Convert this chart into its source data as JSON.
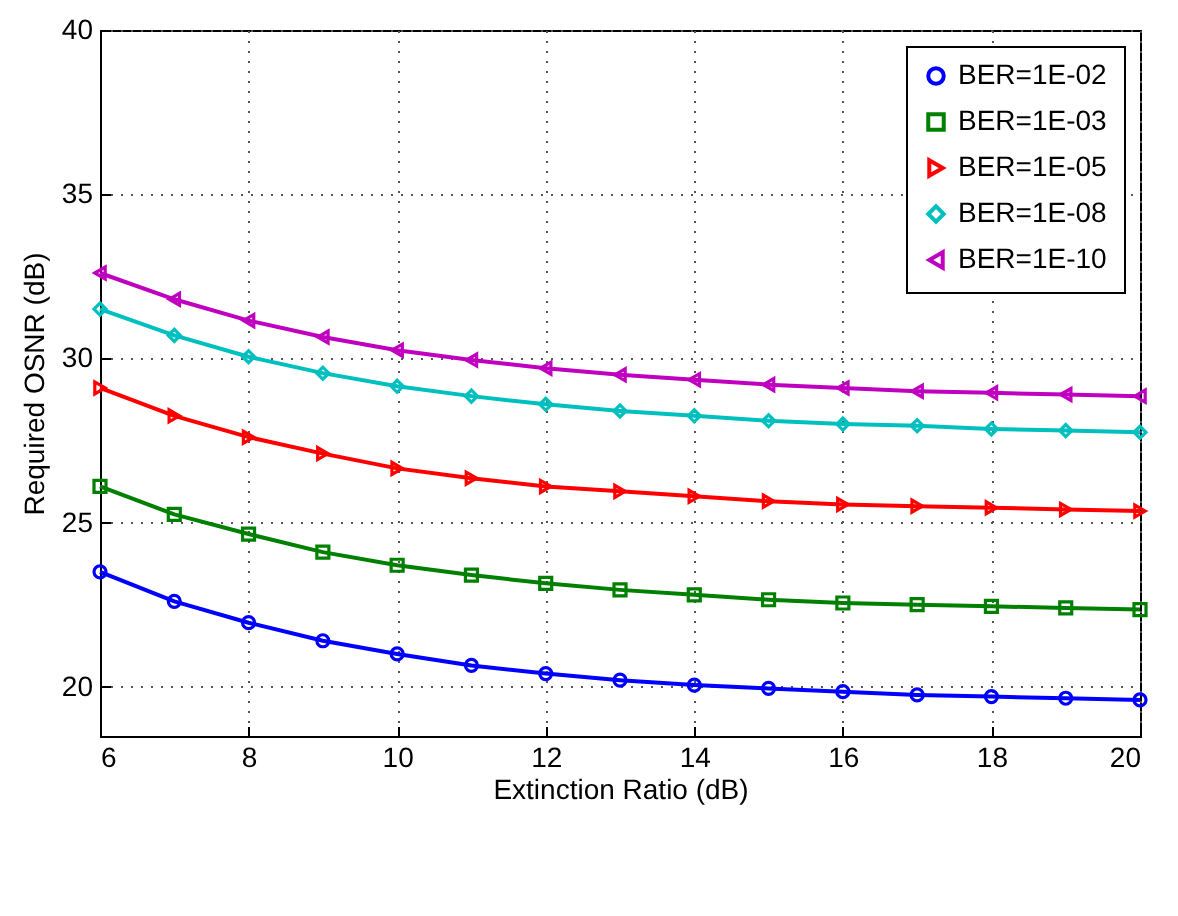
{
  "chart_data": {
    "type": "line",
    "xlabel": "Extinction Ratio (dB)",
    "ylabel": "Required OSNR (dB)",
    "x": [
      6,
      7,
      8,
      9,
      10,
      11,
      12,
      13,
      14,
      15,
      16,
      17,
      18,
      19,
      20
    ],
    "xlim": [
      6,
      20
    ],
    "xticks": [
      6,
      8,
      10,
      12,
      14,
      16,
      18,
      20
    ],
    "ylim": [
      18.5,
      40
    ],
    "yticks": [
      20,
      25,
      30,
      35,
      40
    ],
    "grid": true,
    "legend": "top right",
    "series": [
      {
        "name": "BER=1E-02",
        "color": "#0000ff",
        "marker": "circle",
        "values": [
          23.5,
          22.6,
          21.95,
          21.4,
          21.0,
          20.65,
          20.4,
          20.2,
          20.05,
          19.95,
          19.85,
          19.75,
          19.7,
          19.65,
          19.6
        ]
      },
      {
        "name": "BER=1E-03",
        "color": "#008000",
        "marker": "square",
        "values": [
          26.1,
          25.25,
          24.65,
          24.1,
          23.7,
          23.4,
          23.15,
          22.95,
          22.8,
          22.65,
          22.55,
          22.5,
          22.45,
          22.4,
          22.35
        ]
      },
      {
        "name": "BER=1E-05",
        "color": "#ff0000",
        "marker": "triangle-right",
        "values": [
          29.1,
          28.25,
          27.6,
          27.1,
          26.65,
          26.35,
          26.1,
          25.95,
          25.8,
          25.65,
          25.55,
          25.5,
          25.45,
          25.4,
          25.35
        ]
      },
      {
        "name": "BER=1E-08",
        "color": "#00bfbf",
        "marker": "diamond",
        "values": [
          31.5,
          30.7,
          30.05,
          29.55,
          29.15,
          28.85,
          28.6,
          28.4,
          28.25,
          28.1,
          28.0,
          27.95,
          27.85,
          27.8,
          27.75
        ]
      },
      {
        "name": "BER=1E-10",
        "color": "#bf00bf",
        "marker": "triangle-left",
        "values": [
          32.6,
          31.8,
          31.15,
          30.65,
          30.25,
          29.95,
          29.7,
          29.5,
          29.35,
          29.2,
          29.1,
          29.0,
          28.95,
          28.9,
          28.85
        ]
      }
    ]
  }
}
